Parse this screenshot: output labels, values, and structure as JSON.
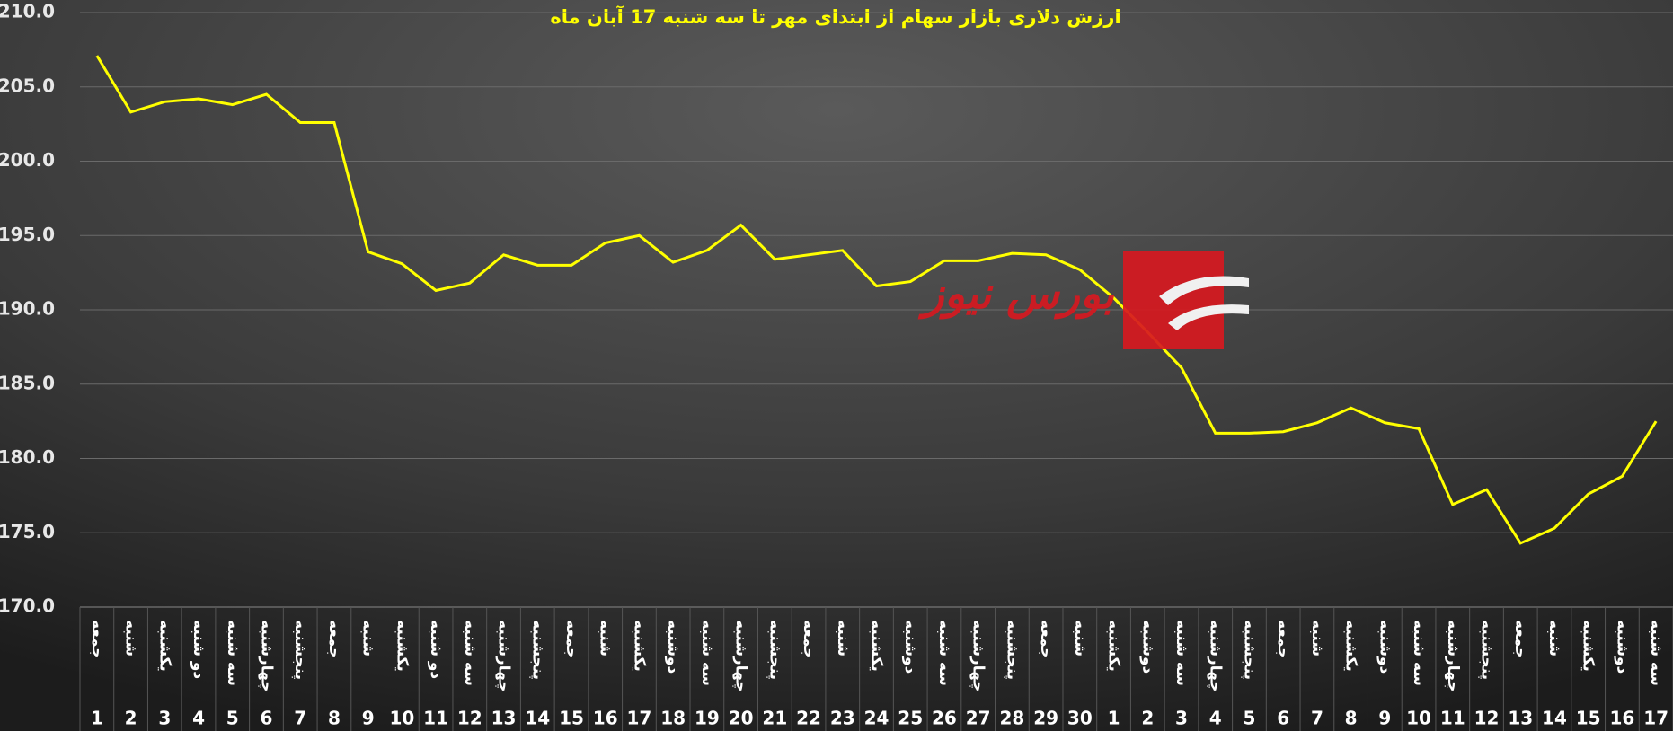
{
  "chart_data": {
    "type": "line",
    "title": "ارزش دلاری بازار سهام از ابتدای مهر تا سه شنبه 17 آبان ماه",
    "watermark": "بورس نیوز",
    "categories": [
      "1",
      "2",
      "3",
      "4",
      "5",
      "6",
      "7",
      "8",
      "9",
      "10",
      "11",
      "12",
      "13",
      "14",
      "15",
      "16",
      "17",
      "18",
      "19",
      "20",
      "21",
      "22",
      "23",
      "24",
      "25",
      "26",
      "27",
      "28",
      "29",
      "30",
      "1",
      "2",
      "3",
      "4",
      "5",
      "6",
      "7",
      "8",
      "9",
      "10",
      "11",
      "12",
      "13",
      "14",
      "15",
      "16",
      "17"
    ],
    "weekdays": [
      "جمعه",
      "شنبه",
      "یکشنبه",
      "دو شنبه",
      "سه شنبه",
      "چهارشنبه",
      "پنجشنبه",
      "جمعه",
      "شنبه",
      "یکشنبه",
      "دو شنبه",
      "سه شنبه",
      "چهارشنبه",
      "پنجشنبه",
      "جمعه",
      "شنبه",
      "یکشنبه",
      "دوشنبه",
      "سه شنبه",
      "چهارشنبه",
      "پنجشنبه",
      "جمعه",
      "شنبه",
      "یکشنبه",
      "دوشنبه",
      "سه شنبه",
      "چهارشنبه",
      "پنجشنبه",
      "جمعه",
      "شنبه",
      "یکشنبه",
      "دوشنبه",
      "سه شنبه",
      "چهارشنبه",
      "پنجشنبه",
      "جمعه",
      "شنبه",
      "یکشنبه",
      "دوشنبه",
      "سه شنبه",
      "چهارشنبه",
      "پنجشنبه",
      "جمعه",
      "شنبه",
      "یکشنبه",
      "دوشنبه",
      "سه شنبه"
    ],
    "values": [
      207.1,
      203.3,
      204.0,
      204.2,
      203.8,
      204.5,
      202.6,
      202.6,
      193.9,
      193.1,
      191.3,
      191.8,
      193.7,
      193.0,
      193.0,
      194.5,
      195.0,
      193.2,
      194.0,
      195.7,
      193.4,
      193.7,
      194.0,
      191.6,
      191.9,
      193.3,
      193.3,
      193.8,
      193.7,
      192.7,
      190.8,
      188.5,
      186.1,
      181.7,
      181.7,
      181.8,
      182.4,
      183.4,
      182.4,
      182.0,
      176.9,
      177.9,
      174.3,
      175.3,
      177.6,
      178.8,
      182.5
    ],
    "color": "#ffff00",
    "ylim": [
      170,
      210
    ],
    "yticks": [
      {
        "value": 170,
        "label": "170.0"
      },
      {
        "value": 175,
        "label": "175.0"
      },
      {
        "value": 180,
        "label": "180.0"
      },
      {
        "value": 185,
        "label": "185.0"
      },
      {
        "value": 190,
        "label": "190.0"
      },
      {
        "value": 195,
        "label": "195.0"
      },
      {
        "value": 200,
        "label": "200.0"
      },
      {
        "value": 205,
        "label": "205.0"
      },
      {
        "value": 210,
        "label": "210.0"
      }
    ],
    "grid": true
  }
}
